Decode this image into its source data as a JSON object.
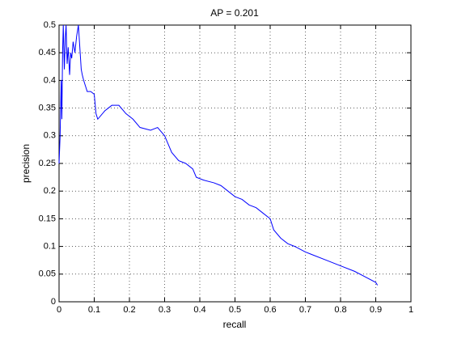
{
  "chart_data": {
    "type": "line",
    "title": "AP = 0.201",
    "xlabel": "recall",
    "ylabel": "precision",
    "x": [
      0,
      0.003,
      0.006,
      0.008,
      0.01,
      0.012,
      0.015,
      0.018,
      0.02,
      0.023,
      0.026,
      0.03,
      0.033,
      0.036,
      0.04,
      0.045,
      0.05,
      0.055,
      0.06,
      0.063,
      0.066,
      0.07,
      0.075,
      0.08,
      0.09,
      0.1,
      0.105,
      0.11,
      0.13,
      0.15,
      0.17,
      0.19,
      0.21,
      0.23,
      0.26,
      0.28,
      0.3,
      0.31,
      0.32,
      0.34,
      0.36,
      0.38,
      0.39,
      0.41,
      0.44,
      0.46,
      0.48,
      0.5,
      0.52,
      0.54,
      0.56,
      0.58,
      0.6,
      0.61,
      0.63,
      0.65,
      0.67,
      0.7,
      0.72,
      0.76,
      0.8,
      0.84,
      0.87,
      0.9,
      0.905
    ],
    "values": [
      0.25,
      0.3,
      0.4,
      0.33,
      0.45,
      0.5,
      0.42,
      0.48,
      0.5,
      0.43,
      0.46,
      0.41,
      0.45,
      0.44,
      0.47,
      0.45,
      0.48,
      0.5,
      0.45,
      0.42,
      0.41,
      0.4,
      0.39,
      0.38,
      0.38,
      0.375,
      0.34,
      0.33,
      0.345,
      0.355,
      0.355,
      0.34,
      0.33,
      0.315,
      0.31,
      0.315,
      0.3,
      0.285,
      0.27,
      0.255,
      0.25,
      0.24,
      0.225,
      0.22,
      0.215,
      0.21,
      0.2,
      0.19,
      0.185,
      0.175,
      0.17,
      0.16,
      0.15,
      0.13,
      0.115,
      0.105,
      0.1,
      0.09,
      0.085,
      0.075,
      0.065,
      0.055,
      0.045,
      0.035,
      0.03
    ],
    "color": "#0000ff",
    "xlim": [
      0,
      1
    ],
    "ylim": [
      0,
      0.5
    ],
    "xticks": [
      0,
      0.1,
      0.2,
      0.3,
      0.4,
      0.5,
      0.6,
      0.7,
      0.8,
      0.9,
      1
    ],
    "yticks": [
      0,
      0.05,
      0.1,
      0.15,
      0.2,
      0.25,
      0.3,
      0.35,
      0.4,
      0.45,
      0.5
    ],
    "grid": true
  }
}
